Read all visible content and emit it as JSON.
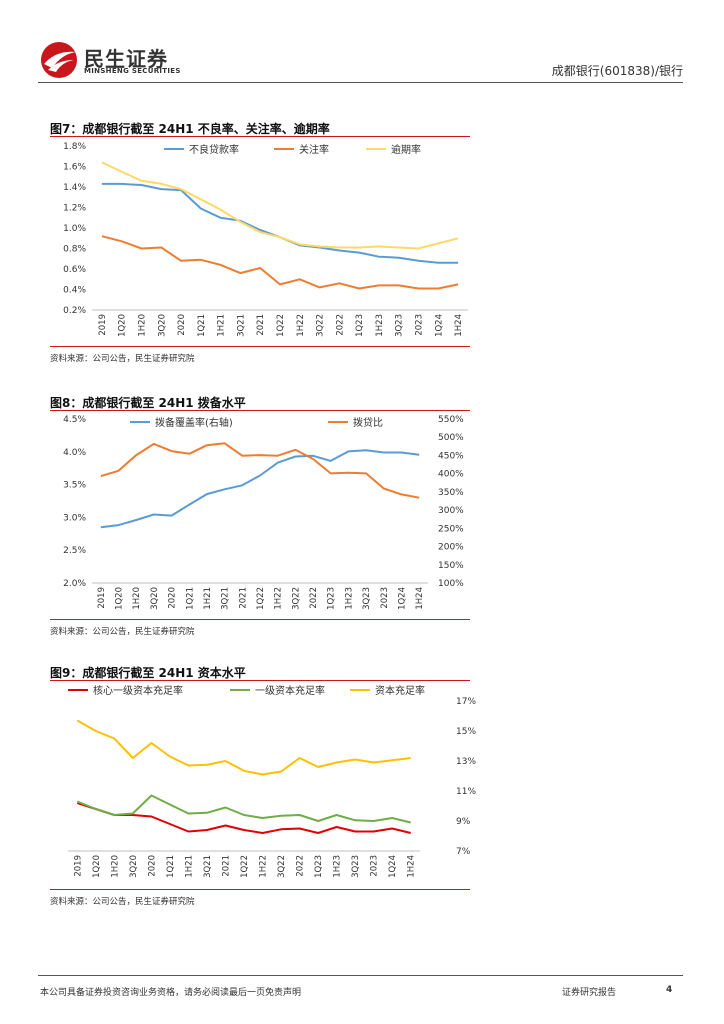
{
  "header": {
    "brand_cn": "民生证券",
    "brand_en": "MINSHENG SECURITIES",
    "report_ref": "成都银行(601838)/银行",
    "brand_color": "#c8161d"
  },
  "footer": {
    "disclaimer": "本公司具备证券投资咨询业务资格，请务必阅读最后一页免责声明",
    "report_type": "证券研究报告",
    "page_number": "4"
  },
  "charts": [
    {
      "id": "fig7",
      "figure_title": "图7：成都银行截至 24H1 不良率、关注率、逾期率",
      "source": "资料来源：公司公告，民生证券研究院"
    },
    {
      "id": "fig8",
      "figure_title": "图8：成都银行截至 24H1 拨备水平",
      "source": "资料来源：公司公告，民生证券研究院"
    },
    {
      "id": "fig9",
      "figure_title": "图9：成都银行截至 24H1 资本水平",
      "source": "资料来源：公司公告，民生证券研究院"
    }
  ],
  "chart_data": [
    {
      "type": "line",
      "title": "图7：成都银行截至 24H1 不良率、关注率、逾期率",
      "categories": [
        "2019",
        "1Q20",
        "1H20",
        "3Q20",
        "2020",
        "1Q21",
        "1H21",
        "3Q21",
        "2021",
        "1Q22",
        "1H22",
        "3Q22",
        "2022",
        "1Q23",
        "1H23",
        "3Q23",
        "2023",
        "1Q24",
        "1H24"
      ],
      "yticks": [
        "0.2%",
        "0.4%",
        "0.6%",
        "0.8%",
        "1.0%",
        "1.2%",
        "1.4%",
        "1.6%",
        "1.8%"
      ],
      "ylim": [
        0.2,
        1.8
      ],
      "legend_position": "top",
      "series": [
        {
          "name": "不良贷款率",
          "color": "#5b9bd5",
          "values": [
            1.43,
            1.43,
            1.42,
            1.38,
            1.37,
            1.19,
            1.1,
            1.07,
            0.98,
            0.91,
            0.83,
            0.81,
            0.78,
            0.76,
            0.72,
            0.71,
            0.68,
            0.66,
            0.66
          ]
        },
        {
          "name": "关注率",
          "color": "#ed7d31",
          "values": [
            0.92,
            0.87,
            0.8,
            0.81,
            0.68,
            0.69,
            0.64,
            0.56,
            0.61,
            0.45,
            0.5,
            0.42,
            0.46,
            0.41,
            0.44,
            0.44,
            0.41,
            0.41,
            0.45
          ]
        },
        {
          "name": "逾期率",
          "color": "#ffd966",
          "values": [
            1.64,
            1.55,
            1.46,
            1.43,
            1.38,
            1.28,
            1.18,
            1.06,
            0.96,
            0.91,
            0.84,
            0.82,
            0.81,
            0.81,
            0.82,
            0.81,
            0.8,
            0.85,
            0.9
          ]
        }
      ]
    },
    {
      "type": "line",
      "title": "图8：成都银行截至 24H1 拨备水平",
      "categories": [
        "2019",
        "1Q20",
        "1H20",
        "3Q20",
        "2020",
        "1Q21",
        "1H21",
        "3Q21",
        "2021",
        "1Q22",
        "1H22",
        "3Q22",
        "2022",
        "1Q23",
        "1H23",
        "3Q23",
        "2023",
        "1Q24",
        "1H24"
      ],
      "yticks_left": [
        "2.0%",
        "2.5%",
        "3.0%",
        "3.5%",
        "4.0%",
        "4.5%"
      ],
      "ylim_left": [
        2.0,
        4.5
      ],
      "yticks_right": [
        "100%",
        "150%",
        "200%",
        "250%",
        "300%",
        "350%",
        "400%",
        "450%",
        "500%",
        "550%"
      ],
      "ylim_right": [
        100,
        550
      ],
      "legend_position": "top",
      "series": [
        {
          "name": "拨备覆盖率(右轴)",
          "axis": "right",
          "color": "#5b9bd5",
          "values": [
            253,
            259,
            273,
            288,
            285,
            315,
            344,
            357,
            368,
            395,
            430,
            447,
            449,
            435,
            461,
            464,
            458,
            458,
            452
          ]
        },
        {
          "name": "拨贷比",
          "axis": "left",
          "color": "#ed7d31",
          "values": [
            3.63,
            3.71,
            3.95,
            4.12,
            4.01,
            3.97,
            4.1,
            4.13,
            3.94,
            3.95,
            3.94,
            4.03,
            3.89,
            3.67,
            3.68,
            3.67,
            3.44,
            3.35,
            3.3
          ]
        }
      ]
    },
    {
      "type": "line",
      "title": "图9：成都银行截至 24H1 资本水平",
      "categories": [
        "2019",
        "1Q20",
        "1H20",
        "3Q20",
        "2020",
        "1Q21",
        "1H21",
        "3Q21",
        "2021",
        "1Q22",
        "1H22",
        "3Q22",
        "2022",
        "1Q23",
        "1H23",
        "3Q23",
        "2023",
        "1Q24",
        "1H24"
      ],
      "yticks": [
        "7%",
        "9%",
        "11%",
        "13%",
        "15%",
        "17%"
      ],
      "ylim": [
        7,
        17
      ],
      "legend_position": "top",
      "series": [
        {
          "name": "核心一级资本充足率",
          "color": "#e00000",
          "values": [
            10.2,
            9.8,
            9.4,
            9.4,
            9.3,
            8.8,
            8.3,
            8.4,
            8.7,
            8.4,
            8.2,
            8.45,
            8.5,
            8.2,
            8.6,
            8.3,
            8.3,
            8.5,
            8.2
          ]
        },
        {
          "name": "一级资本充足率",
          "color": "#70ad47",
          "values": [
            10.3,
            9.8,
            9.4,
            9.5,
            10.7,
            10.1,
            9.5,
            9.55,
            9.9,
            9.4,
            9.2,
            9.35,
            9.4,
            9.0,
            9.4,
            9.05,
            9.0,
            9.2,
            8.9
          ]
        },
        {
          "name": "资本充足率",
          "color": "#ffc000",
          "values": [
            15.7,
            15.0,
            14.5,
            13.2,
            14.2,
            13.3,
            12.7,
            12.75,
            13.0,
            12.35,
            12.1,
            12.3,
            13.2,
            12.6,
            12.9,
            13.1,
            12.9,
            13.05,
            13.2
          ]
        }
      ]
    }
  ]
}
